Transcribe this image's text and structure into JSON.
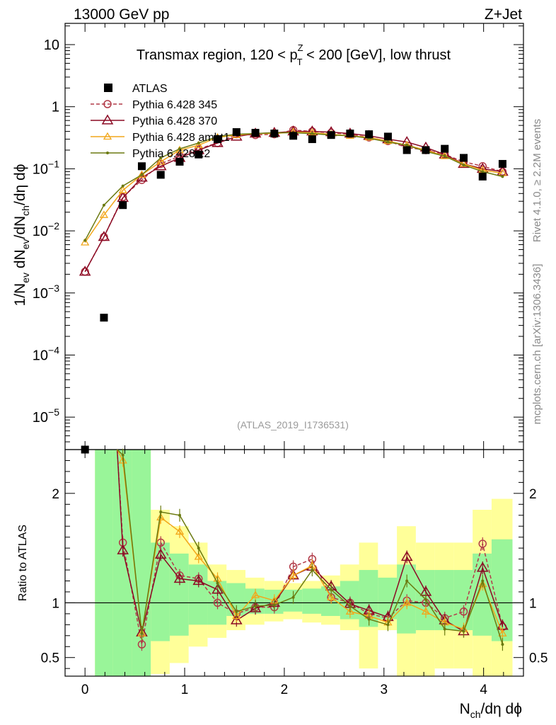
{
  "header": {
    "beam": "13000 GeV pp",
    "process": "Z+Jet"
  },
  "side_labels": {
    "rivet": "Rivet 4.1.0, ≥ 2.2M events",
    "source": "mcplots.cern.ch [arXiv:1306.3436]"
  },
  "chart_data": {
    "type": "scatter",
    "title": "Transmax region, 120 < pT^Z < 200 [GeV], low thrust",
    "title_parts": {
      "a": "Transmax region, 120 < p",
      "sup": "Z",
      "sub": "T",
      "b": " < 200 [GeV], low thrust"
    },
    "analysis_tag": "(ATLAS_2019_I1736531)",
    "xlabel": "N_ch/dη dϕ",
    "xlabel_parts": {
      "a": "N",
      "sub": "ch",
      "b": "/dη dϕ"
    },
    "ylabel": "1/N_ev dN_ev/dN_ch/dη dϕ",
    "ratio_ylabel": "Ratio to ATLAS",
    "xlim": [
      -0.2,
      4.4
    ],
    "ylim_main": [
      3e-06,
      22
    ],
    "yscale_main": "log",
    "ylim_ratio": [
      0.33,
      2.4
    ],
    "ratio_reference": 1,
    "x_ticks": [
      0,
      1,
      2,
      3,
      4
    ],
    "x_tick_labels": [
      "0",
      "1",
      "2",
      "3",
      "4"
    ],
    "main_y_ticks": [
      {
        "value": 1e-05,
        "base": "10",
        "exp": "−5"
      },
      {
        "value": 0.0001,
        "base": "10",
        "exp": "−4"
      },
      {
        "value": 0.001,
        "base": "10",
        "exp": "−3"
      },
      {
        "value": 0.01,
        "base": "10",
        "exp": "−2"
      },
      {
        "value": 0.1,
        "base": "10",
        "exp": "−1"
      },
      {
        "value": 1,
        "base": "1",
        "exp": ""
      },
      {
        "value": 10,
        "base": "10",
        "exp": ""
      }
    ],
    "ratio_y_ticks": [
      {
        "value": 0.5,
        "label": "0.5"
      },
      {
        "value": 1,
        "label": "1"
      },
      {
        "value": 2,
        "label": "2"
      }
    ],
    "x": [
      0,
      0.19,
      0.38,
      0.57,
      0.76,
      0.95,
      1.14,
      1.33,
      1.52,
      1.71,
      1.9,
      2.09,
      2.28,
      2.47,
      2.66,
      2.85,
      3.04,
      3.23,
      3.42,
      3.61,
      3.8,
      3.99,
      4.19
    ],
    "data": {
      "name": "ATLAS",
      "color": "#000000",
      "values": [
        2.5e-06,
        0.0004,
        0.026,
        0.11,
        0.08,
        0.13,
        0.17,
        0.3,
        0.39,
        0.38,
        0.37,
        0.34,
        0.3,
        0.35,
        0.37,
        0.36,
        0.33,
        0.2,
        0.2,
        0.21,
        0.15,
        0.075,
        0.12
      ]
    },
    "series": [
      {
        "name": "Pythia 6.428 345",
        "color": "#b23a48",
        "marker": "open-circle",
        "dash": "5,3",
        "values": [
          0.0022,
          0.008,
          0.035,
          0.066,
          0.12,
          0.16,
          0.21,
          0.26,
          0.36,
          0.35,
          0.36,
          0.42,
          0.4,
          0.38,
          0.36,
          0.32,
          0.28,
          0.22,
          0.2,
          0.17,
          0.13,
          0.11,
          0.09
        ],
        "ratio": [
          null,
          null,
          1.55,
          0.62,
          1.55,
          1.25,
          1.22,
          1.0,
          0.9,
          0.96,
          0.96,
          1.33,
          1.4,
          1.05,
          1.0,
          0.9,
          0.86,
          1.02,
          1.0,
          0.86,
          0.92,
          1.54,
          0.78
        ]
      },
      {
        "name": "Pythia 6.428 370",
        "color": "#8b0a24",
        "marker": "open-triangle",
        "dash": "",
        "values": [
          0.0022,
          0.008,
          0.034,
          0.072,
          0.11,
          0.15,
          0.2,
          0.26,
          0.33,
          0.37,
          0.38,
          0.4,
          0.4,
          0.39,
          0.37,
          0.34,
          0.3,
          0.27,
          0.22,
          0.17,
          0.12,
          0.1,
          0.09
        ],
        "ratio": [
          null,
          null,
          1.48,
          0.73,
          1.44,
          1.22,
          1.2,
          1.12,
          0.84,
          0.95,
          1.0,
          1.25,
          1.33,
          1.15,
          0.99,
          0.93,
          0.87,
          1.42,
          1.1,
          0.84,
          0.74,
          1.32,
          0.79
        ]
      },
      {
        "name": "Pythia 6.428 ambt1",
        "color": "#f2a71b",
        "marker": "open-triangle-small",
        "dash": "",
        "values": [
          0.0065,
          0.018,
          0.045,
          0.08,
          0.13,
          0.2,
          0.24,
          0.32,
          0.35,
          0.37,
          0.37,
          0.39,
          0.38,
          0.36,
          0.34,
          0.32,
          0.28,
          0.24,
          0.2,
          0.16,
          0.12,
          0.095,
          0.085
        ],
        "ratio": [
          null,
          null,
          2.3,
          0.72,
          1.78,
          1.65,
          1.42,
          1.22,
          0.88,
          1.07,
          1.02,
          1.25,
          1.34,
          1.05,
          0.92,
          0.88,
          0.82,
          1.0,
          0.92,
          0.82,
          0.76,
          1.17,
          0.72
        ]
      },
      {
        "name": "Pythia 6.428 z2",
        "color": "#6b7a10",
        "marker": "dot",
        "dash": "",
        "values": [
          0.007,
          0.026,
          0.053,
          0.08,
          0.15,
          0.21,
          0.26,
          0.33,
          0.36,
          0.37,
          0.38,
          0.38,
          0.37,
          0.35,
          0.34,
          0.31,
          0.27,
          0.24,
          0.19,
          0.16,
          0.115,
          0.09,
          0.075
        ],
        "ratio": [
          null,
          null,
          2.35,
          0.72,
          1.83,
          1.8,
          1.5,
          1.18,
          0.92,
          0.97,
          0.98,
          1.05,
          1.3,
          1.12,
          0.97,
          0.85,
          0.8,
          1.2,
          1.03,
          0.76,
          0.74,
          1.2,
          0.62
        ]
      }
    ],
    "bands": {
      "bin_edges": [
        0.1,
        0.28,
        0.47,
        0.66,
        0.85,
        1.04,
        1.23,
        1.42,
        1.61,
        1.8,
        1.99,
        2.18,
        2.37,
        2.56,
        2.75,
        2.94,
        3.13,
        3.32,
        3.51,
        3.7,
        3.89,
        4.08,
        4.29
      ],
      "stat": [
        [
          0.33,
          2.4
        ],
        [
          0.33,
          2.4
        ],
        [
          0.33,
          2.4
        ],
        [
          0.65,
          1.55
        ],
        [
          0.7,
          1.45
        ],
        [
          0.8,
          1.35
        ],
        [
          0.8,
          1.2
        ],
        [
          0.88,
          1.18
        ],
        [
          0.9,
          1.13
        ],
        [
          0.9,
          1.12
        ],
        [
          0.92,
          1.12
        ],
        [
          0.9,
          1.13
        ],
        [
          0.88,
          1.15
        ],
        [
          0.85,
          1.2
        ],
        [
          0.78,
          1.3
        ],
        [
          0.85,
          1.23
        ],
        [
          0.72,
          1.35
        ],
        [
          0.75,
          1.3
        ],
        [
          0.75,
          1.3
        ],
        [
          0.75,
          1.3
        ],
        [
          0.7,
          1.45
        ],
        [
          0.65,
          1.58
        ]
      ],
      "total": [
        [
          0.33,
          2.4
        ],
        [
          0.33,
          2.4
        ],
        [
          0.33,
          2.4
        ],
        [
          0.35,
          1.85
        ],
        [
          0.45,
          1.7
        ],
        [
          0.6,
          1.55
        ],
        [
          0.68,
          1.35
        ],
        [
          0.75,
          1.3
        ],
        [
          0.8,
          1.23
        ],
        [
          0.83,
          1.2
        ],
        [
          0.85,
          1.18
        ],
        [
          0.82,
          1.2
        ],
        [
          0.8,
          1.25
        ],
        [
          0.75,
          1.35
        ],
        [
          0.4,
          1.55
        ],
        [
          0.75,
          1.35
        ],
        [
          0.33,
          1.7
        ],
        [
          0.33,
          1.55
        ],
        [
          0.4,
          1.55
        ],
        [
          0.4,
          1.55
        ],
        [
          0.33,
          1.85
        ],
        [
          0.33,
          1.95
        ]
      ],
      "stat_color": "#99f599",
      "total_color": "#ffff99"
    }
  }
}
